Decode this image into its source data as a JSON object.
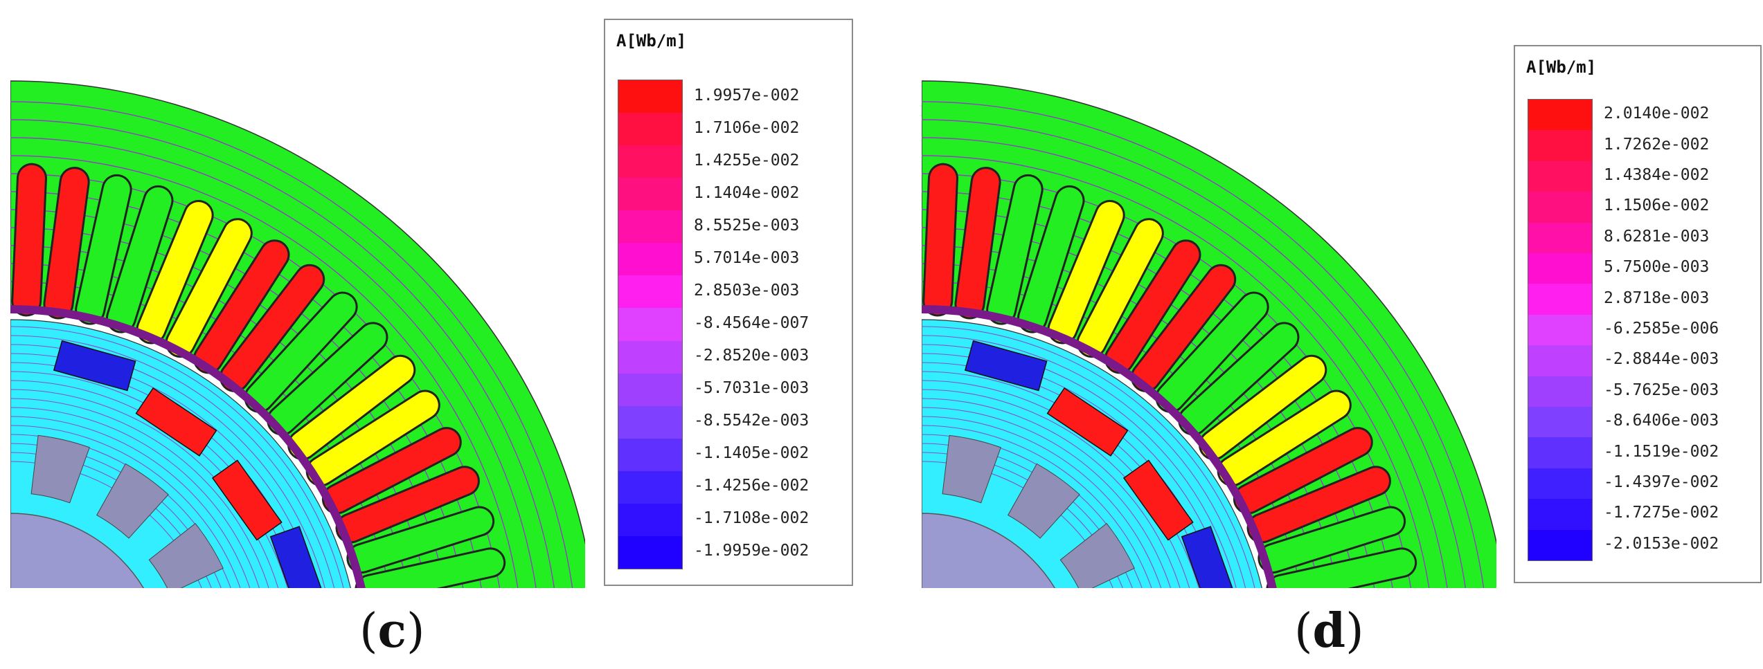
{
  "panels": [
    {
      "id": "c",
      "caption": "(c)",
      "caption_letter": "c",
      "legend": {
        "title": "A[Wb/m]",
        "values": [
          "1.9957e-002",
          "1.7106e-002",
          "1.4255e-002",
          "1.1404e-002",
          "8.5525e-003",
          "5.7014e-003",
          "2.8503e-003",
          "-8.4564e-007",
          "-2.8520e-003",
          "-5.7031e-003",
          "-8.5542e-003",
          "-1.1405e-002",
          "-1.4256e-002",
          "-1.7108e-002",
          "-1.9959e-002"
        ]
      }
    },
    {
      "id": "d",
      "caption": "(d)",
      "caption_letter": "d",
      "legend": {
        "title": "A[Wb/m]",
        "values": [
          "2.0140e-002",
          "1.7262e-002",
          "1.4384e-002",
          "1.1506e-002",
          "8.6281e-003",
          "5.7500e-003",
          "2.8718e-003",
          "-6.2585e-006",
          "-2.8844e-003",
          "-5.7625e-003",
          "-8.6406e-003",
          "-1.1519e-002",
          "-1.4397e-002",
          "-1.7275e-002",
          "-2.0153e-002"
        ]
      }
    }
  ],
  "legend_colors": [
    "#ff1010",
    "#ff1040",
    "#ff1060",
    "#ff1080",
    "#ff10a8",
    "#ff10d0",
    "#ff20f0",
    "#e040ff",
    "#c040ff",
    "#a040ff",
    "#8040ff",
    "#6030ff",
    "#4020ff",
    "#3010ff",
    "#2000ff"
  ],
  "colors": {
    "stator_core": "#22ee22",
    "rotor_core": "#33eeff",
    "rotor_iron": "#8f8fb8",
    "shaft": "#9a9ad0",
    "flux_line": "#9040c0",
    "airgap_ring": "#7a1a8a",
    "coil_red": "#ff1a1a",
    "coil_yellow": "#ffff00",
    "coil_green": "#22ee22",
    "magnet_blue": "#2020e0",
    "magnet_red": "#ff1a1a"
  }
}
